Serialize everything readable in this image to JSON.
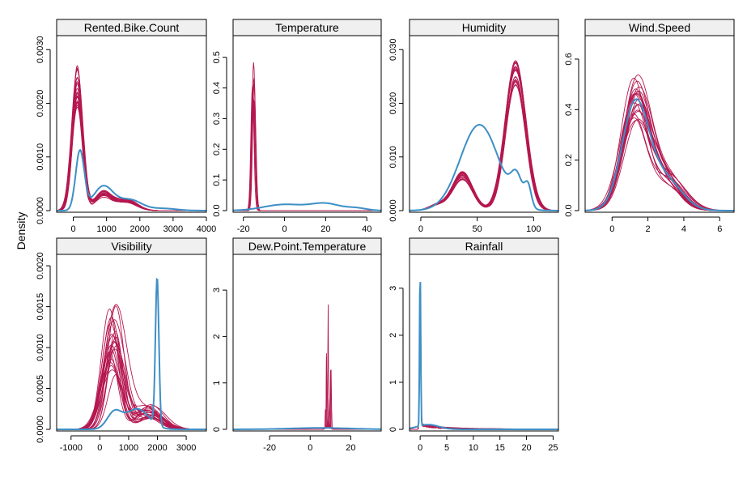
{
  "colors": {
    "observed": "#3d8fc6",
    "imputed": "#b5174f",
    "strip": "#f0f0f0",
    "frame": "#000000"
  },
  "ylabel": "Density",
  "chart_data": {
    "type": "line",
    "description_of_series": "blue = observed density, crimson = imputed densities",
    "panels": [
      {
        "title": "Rented.Bike.Count",
        "xlim": [
          -500,
          4000
        ],
        "ylim": [
          0,
          0.0032
        ],
        "xticks": [
          0,
          1000,
          2000,
          3000,
          4000
        ],
        "yticks": [
          0.0,
          0.001,
          0.002,
          0.003
        ],
        "ytick_labels": [
          "0.0000",
          "0.0010",
          "0.0020",
          "0.0030"
        ],
        "observed": {
          "shape": "mix",
          "comps": [
            [
              200,
              130,
              0.0011
            ],
            [
              900,
              300,
              0.00045
            ],
            [
              1700,
              350,
              0.0002
            ],
            [
              2700,
              400,
              4e-05
            ]
          ]
        },
        "imputed": {
          "shape": "mix",
          "comps": [
            [
              120,
              160,
              0.0023
            ],
            [
              900,
              250,
              0.0003
            ],
            [
              1600,
              300,
              0.00018
            ]
          ],
          "n": 20,
          "jitter": 0.2
        }
      },
      {
        "title": "Temperature",
        "xlim": [
          -25,
          47
        ],
        "ylim": [
          0,
          0.56
        ],
        "xticks": [
          -20,
          0,
          20,
          40
        ],
        "yticks": [
          0.0,
          0.1,
          0.2,
          0.3,
          0.4,
          0.5
        ],
        "ytick_labels": [
          "0.0",
          "0.1",
          "0.2",
          "0.3",
          "0.4",
          "0.5"
        ],
        "observed": {
          "shape": "mix",
          "comps": [
            [
              0,
              10,
              0.02
            ],
            [
              20,
              7,
              0.022
            ],
            [
              35,
              5,
              0.008
            ]
          ]
        },
        "imputed": {
          "shape": "mix",
          "comps": [
            [
              -15,
              0.8,
              0.4
            ]
          ],
          "n": 8,
          "jitter": 0.25,
          "xjitter": 0.6
        }
      },
      {
        "title": "Humidity",
        "xlim": [
          -10,
          122
        ],
        "ylim": [
          0,
          0.032
        ],
        "xticks": [
          0,
          50,
          100
        ],
        "yticks": [
          0.0,
          0.01,
          0.02,
          0.03
        ],
        "ytick_labels": [
          "0.000",
          "0.010",
          "0.020",
          "0.030"
        ],
        "observed": {
          "shape": "mix",
          "comps": [
            [
              52,
              17,
              0.016
            ],
            [
              85,
              5,
              0.005
            ],
            [
              95,
              3,
              0.004
            ]
          ]
        },
        "imputed": {
          "shape": "mix",
          "comps": [
            [
              37,
              9,
              0.0065
            ],
            [
              84,
              9,
              0.025
            ],
            [
              15,
              8,
              0.001
            ]
          ],
          "n": 20,
          "jitter": 0.12
        }
      },
      {
        "title": "Wind.Speed",
        "xlim": [
          -1.5,
          6.8
        ],
        "ylim": [
          0,
          0.68
        ],
        "xticks": [
          0,
          2,
          4,
          6
        ],
        "yticks": [
          0.0,
          0.2,
          0.4,
          0.6
        ],
        "ytick_labels": [
          "0.0",
          "0.2",
          "0.4",
          "0.6"
        ],
        "observed": {
          "shape": "mix",
          "comps": [
            [
              1.3,
              0.75,
              0.42
            ],
            [
              3.0,
              0.9,
              0.12
            ]
          ]
        },
        "imputed": {
          "shape": "mix",
          "comps": [
            [
              1.3,
              0.75,
              0.42
            ],
            [
              3.0,
              0.9,
              0.12
            ]
          ],
          "n": 20,
          "jitter": 0.22,
          "xjitter": 0.15
        }
      },
      {
        "title": "Visibility",
        "xlim": [
          -1500,
          3700
        ],
        "ylim": [
          0,
          0.0021
        ],
        "xticks": [
          -1000,
          0,
          1000,
          2000,
          3000
        ],
        "yticks": [
          0.0,
          0.0005,
          0.001,
          0.0015,
          0.002
        ],
        "ytick_labels": [
          "0.0000",
          "0.0005",
          "0.0010",
          "0.0015",
          "0.0020"
        ],
        "observed": {
          "shape": "mix",
          "comps": [
            [
              1990,
              60,
              0.0018
            ],
            [
              500,
              250,
              0.0002
            ],
            [
              1300,
              400,
              0.00025
            ]
          ]
        },
        "imputed": {
          "shape": "mix",
          "comps": [
            [
              450,
              320,
              0.0011
            ],
            [
              1700,
              450,
              0.00022
            ]
          ],
          "n": 22,
          "jitter": 0.4,
          "xjitter": 130
        }
      },
      {
        "title": "Dew.Point.Temperature",
        "xlim": [
          -38,
          35
        ],
        "ylim": [
          0,
          3.7
        ],
        "xticks": [
          -20,
          0,
          20
        ],
        "yticks": [
          0,
          1,
          2,
          3
        ],
        "ytick_labels": [
          "0",
          "1",
          "2",
          "3"
        ],
        "observed": {
          "shape": "mix",
          "comps": [
            [
              5,
              15,
              0.03
            ]
          ]
        },
        "imputed": {
          "shape": "spikes",
          "center": 8.8,
          "spread": 1.2,
          "peaks": [
            3.45,
            1.6,
            1.6,
            1.6,
            1.6,
            0.6,
            0.6,
            0.4
          ]
        }
      },
      {
        "title": "Rainfall",
        "xlim": [
          -2,
          26
        ],
        "ylim": [
          0,
          3.65
        ],
        "xticks": [
          0,
          5,
          10,
          15,
          20,
          25
        ],
        "yticks": [
          0,
          1,
          2,
          3
        ],
        "ytick_labels": [
          "0",
          "1",
          "2",
          "3"
        ],
        "observed": {
          "shape": "mix",
          "comps": [
            [
              0,
              0.1,
              3.4
            ],
            [
              1.5,
              2,
              0.1
            ]
          ]
        },
        "imputed": {
          "shape": "rain",
          "peak": 2.1,
          "n": 12
        }
      }
    ]
  }
}
